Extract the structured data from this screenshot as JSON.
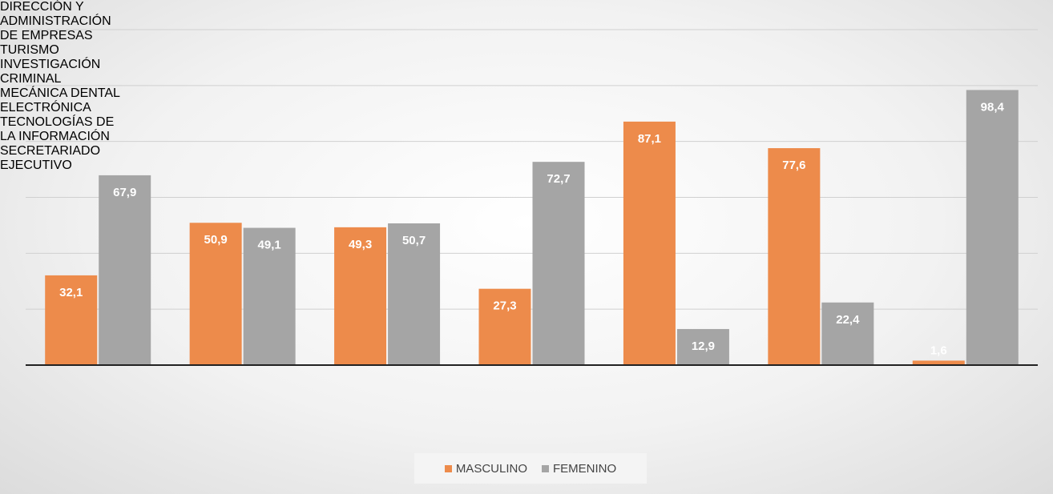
{
  "chart_data": {
    "type": "bar",
    "categories": [
      "DIRECCIÓN Y ADMINISTRACIÓN DE EMPRESAS",
      "TURISMO",
      "INVESTIGACIÓN CRIMINAL",
      "MECÁNICA DENTAL",
      "ELECTRÓNICA",
      "TECNOLOGÍAS DE LA INFORMACIÓN",
      "SECRETARIADO EJECUTIVO"
    ],
    "series": [
      {
        "name": "MASCULINO",
        "color": "#ed8b4b",
        "values": [
          32.1,
          50.9,
          49.3,
          27.3,
          87.1,
          77.6,
          1.6
        ],
        "value_labels": [
          "32,1",
          "50,9",
          "49,3",
          "27,3",
          "87,1",
          "77,6",
          "1,6"
        ]
      },
      {
        "name": "FEMENINO",
        "color": "#a5a5a5",
        "values": [
          67.9,
          49.1,
          50.7,
          72.7,
          12.9,
          22.4,
          98.4
        ],
        "value_labels": [
          "67,9",
          "49,1",
          "50,7",
          "72,7",
          "12,9",
          "22,4",
          "98,4"
        ]
      }
    ],
    "ylim": [
      0,
      120
    ],
    "yticks": [
      0,
      20,
      40,
      60,
      80,
      100,
      120
    ],
    "grid": true,
    "legend": "bottom"
  }
}
